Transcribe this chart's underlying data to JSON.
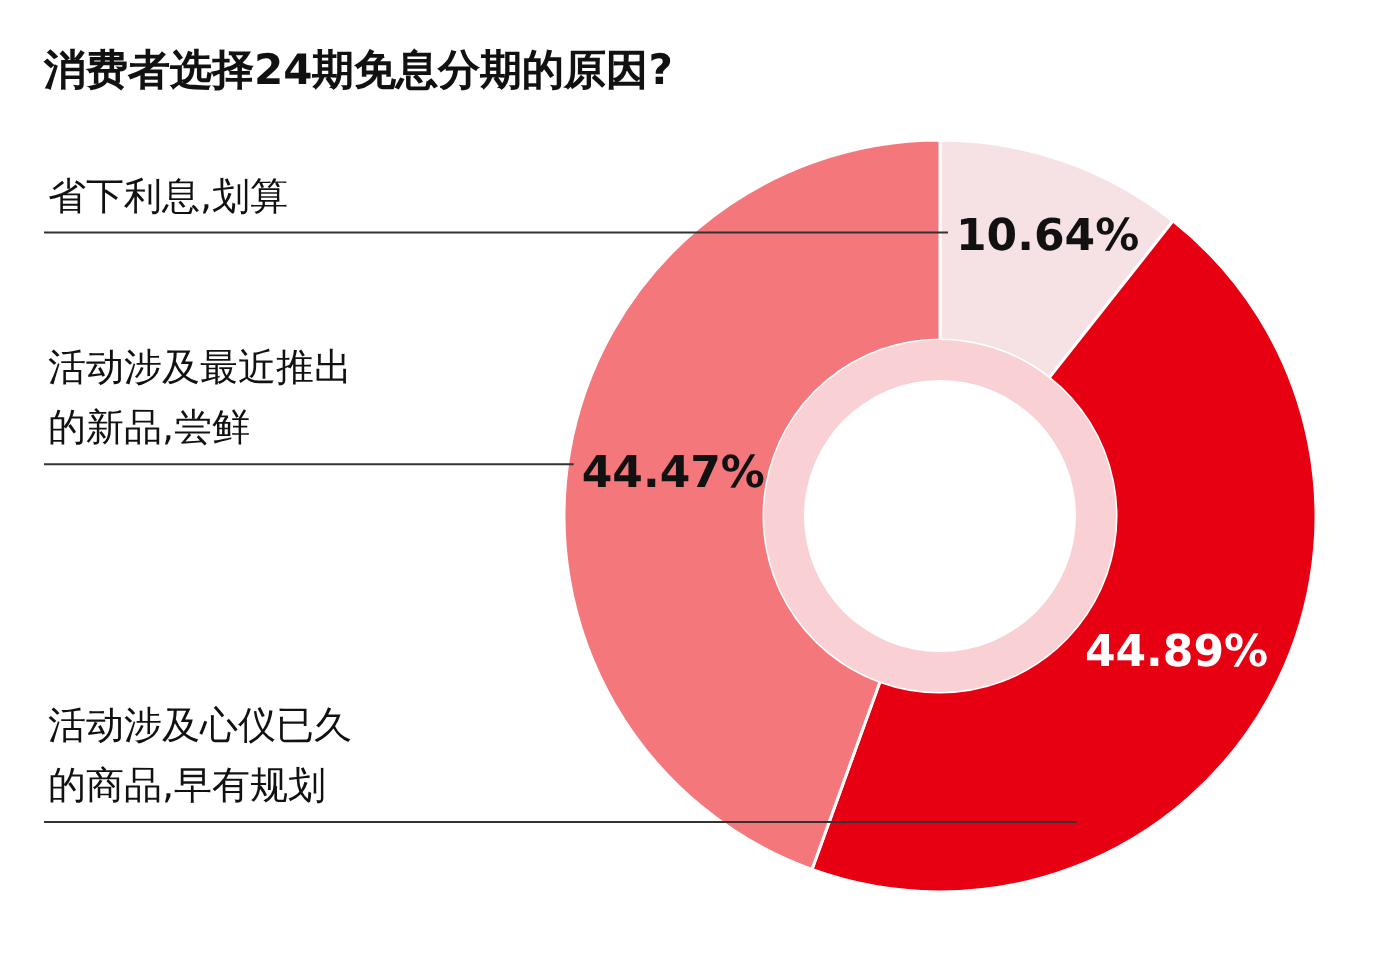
{
  "chart_data": {
    "type": "donut",
    "title": "消费者选择24期免息分期的原因?",
    "categories": [
      "省下利息,划算",
      "活动涉及心仪已久的商品,早有规划",
      "活动涉及最近推出的新品,尝鲜"
    ],
    "values": [
      10.64,
      44.89,
      44.47
    ],
    "colors": [
      "#f6e2e4",
      "#e60012",
      "#f4777b"
    ],
    "value_labels": [
      "10.64%",
      "44.89%",
      "44.47%"
    ]
  }
}
